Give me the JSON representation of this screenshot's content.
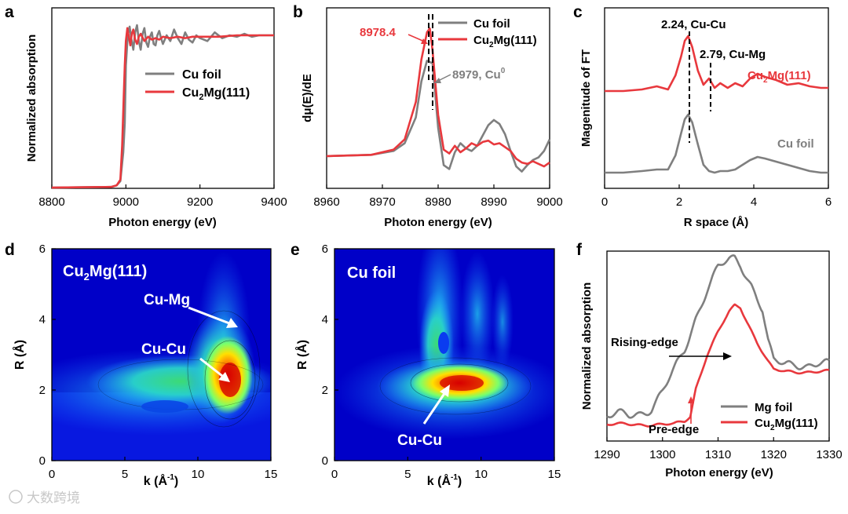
{
  "colors": {
    "cu": "#7f7f7f",
    "alloy": "#e8383d",
    "ann": "#000000",
    "white": "#ffffff"
  },
  "watermark": "大数跨境",
  "chart_data": [
    {
      "panel": "a",
      "type": "line",
      "xlabel": "Photon energy (eV)",
      "ylabel": "Normalized absorption",
      "xlim": [
        8800,
        9400
      ],
      "ylim": [
        0,
        1.25
      ],
      "xticks": [
        "8800",
        "9000",
        "9200",
        "9400"
      ],
      "legend": [
        "Cu foil",
        "Cu2Mg(111)"
      ],
      "series": [
        {
          "name": "Cu foil",
          "color": "#7f7f7f",
          "x": [
            8800,
            8960,
            8975,
            8985,
            8993,
            8997,
            9000,
            9005,
            9010,
            9015,
            9020,
            9025,
            9030,
            9035,
            9040,
            9045,
            9050,
            9055,
            9060,
            9065,
            9070,
            9075,
            9080,
            9085,
            9090,
            9095,
            9100,
            9110,
            9120,
            9130,
            9140,
            9150,
            9160,
            9170,
            9180,
            9190,
            9200,
            9220,
            9240,
            9260,
            9280,
            9300,
            9320,
            9340,
            9360,
            9380,
            9400
          ],
          "y": [
            0.005,
            0.01,
            0.02,
            0.05,
            0.25,
            0.45,
            0.85,
            1.06,
            1.12,
            1.03,
            0.96,
            1.08,
            1.13,
            1.02,
            0.96,
            1.07,
            1.11,
            1.01,
            0.98,
            1.05,
            1.08,
            1.0,
            0.99,
            1.06,
            1.09,
            1.04,
            1.0,
            1.06,
            1.02,
            1.1,
            1.04,
            1.0,
            1.08,
            1.03,
            1.01,
            1.06,
            1.04,
            1.02,
            1.08,
            1.04,
            1.06,
            1.05,
            1.07,
            1.05,
            1.06,
            1.06,
            1.06
          ]
        },
        {
          "name": "Cu2Mg(111)",
          "color": "#e8383d",
          "x": [
            8800,
            8960,
            8975,
            8985,
            8990,
            8994,
            8997,
            9000,
            9004,
            9008,
            9012,
            9016,
            9020,
            9025,
            9030,
            9035,
            9040,
            9050,
            9060,
            9070,
            9080,
            9090,
            9100,
            9120,
            9140,
            9160,
            9180,
            9200,
            9250,
            9300,
            9350,
            9400
          ],
          "y": [
            0.005,
            0.01,
            0.02,
            0.06,
            0.3,
            0.62,
            0.85,
            1.02,
            1.11,
            1.05,
            0.99,
            1.07,
            1.1,
            1.03,
            1.0,
            1.05,
            1.07,
            1.02,
            1.05,
            1.03,
            1.04,
            1.03,
            1.05,
            1.04,
            1.05,
            1.04,
            1.05,
            1.05,
            1.05,
            1.06,
            1.06,
            1.06
          ]
        }
      ]
    },
    {
      "panel": "b",
      "type": "line",
      "xlabel": "Photon energy (eV)",
      "ylabel": "dμ(E)/dE",
      "xlim": [
        8960,
        9000
      ],
      "ylim": [
        -0.25,
        1.15
      ],
      "xticks": [
        "8960",
        "8970",
        "8980",
        "8990",
        "9000"
      ],
      "legend": [
        "Cu foil",
        "Cu2Mg(111)"
      ],
      "annotations": {
        "alloy_peak": "8978.4",
        "cu_peak": "8979, Cu",
        "cu_peak_sup": "0"
      },
      "series": [
        {
          "name": "Cu foil",
          "color": "#7f7f7f",
          "x": [
            8960,
            8968,
            8972,
            8974,
            8976,
            8977,
            8978,
            8979,
            8980,
            8981,
            8982,
            8983,
            8984,
            8985,
            8986,
            8987,
            8988,
            8989,
            8990,
            8991,
            8992,
            8993,
            8994,
            8995,
            8996,
            8997,
            8998,
            8999,
            9000
          ],
          "y": [
            0.0,
            0.01,
            0.04,
            0.1,
            0.3,
            0.58,
            0.74,
            0.72,
            0.22,
            -0.07,
            -0.1,
            0.03,
            0.1,
            0.06,
            0.04,
            0.08,
            0.16,
            0.24,
            0.28,
            0.25,
            0.17,
            0.04,
            -0.08,
            -0.12,
            -0.07,
            -0.03,
            -0.01,
            0.04,
            0.13
          ]
        },
        {
          "name": "Cu2Mg(111)",
          "color": "#e8383d",
          "x": [
            8960,
            8968,
            8972,
            8974,
            8976,
            8977,
            8978,
            8978.5,
            8979,
            8980,
            8981,
            8982,
            8983,
            8984,
            8985,
            8986,
            8987,
            8988,
            8989,
            8990,
            8991,
            8992,
            8993,
            8994,
            8995,
            8996,
            8997,
            8998,
            8999,
            9000
          ],
          "y": [
            0.0,
            0.01,
            0.05,
            0.13,
            0.42,
            0.75,
            0.96,
            0.99,
            0.82,
            0.32,
            0.05,
            0.02,
            0.08,
            0.03,
            0.06,
            0.1,
            0.08,
            0.11,
            0.12,
            0.09,
            0.1,
            0.07,
            0.04,
            -0.02,
            -0.05,
            -0.06,
            -0.04,
            -0.06,
            -0.08,
            -0.05
          ]
        }
      ]
    },
    {
      "panel": "c",
      "type": "line",
      "xlabel": "R space (Å)",
      "ylabel": "Magenitude of FT",
      "xlim": [
        0,
        6
      ],
      "ylim": [
        0,
        1.15
      ],
      "xticks": [
        "0",
        "2",
        "4",
        "6"
      ],
      "annotations": {
        "peak1": "2.24, Cu-Cu",
        "peak2": "2.79, Cu-Mg",
        "peak1_r": 2.24,
        "peak2_r": 2.79
      },
      "curve_labels": [
        "Cu2Mg(111)",
        "Cu foil"
      ],
      "series": [
        {
          "name": "Cu2Mg(111)",
          "color": "#e8383d",
          "x": [
            0,
            0.5,
            1.0,
            1.4,
            1.7,
            1.9,
            2.05,
            2.15,
            2.24,
            2.35,
            2.5,
            2.65,
            2.8,
            2.95,
            3.1,
            3.3,
            3.5,
            3.7,
            3.9,
            4.1,
            4.3,
            4.6,
            4.9,
            5.2,
            5.5,
            5.8,
            6.0
          ],
          "y": [
            0.62,
            0.62,
            0.63,
            0.65,
            0.63,
            0.72,
            0.84,
            0.94,
            0.97,
            0.9,
            0.75,
            0.66,
            0.7,
            0.64,
            0.67,
            0.64,
            0.67,
            0.65,
            0.7,
            0.73,
            0.71,
            0.69,
            0.66,
            0.67,
            0.65,
            0.64,
            0.64
          ]
        },
        {
          "name": "Cu foil",
          "color": "#7f7f7f",
          "x": [
            0,
            0.5,
            1.0,
            1.4,
            1.7,
            1.9,
            2.05,
            2.15,
            2.24,
            2.35,
            2.5,
            2.65,
            2.8,
            2.95,
            3.1,
            3.3,
            3.5,
            3.7,
            3.9,
            4.1,
            4.3,
            4.6,
            4.9,
            5.2,
            5.5,
            5.8,
            6.0
          ],
          "y": [
            0.1,
            0.1,
            0.11,
            0.12,
            0.12,
            0.21,
            0.35,
            0.44,
            0.47,
            0.42,
            0.28,
            0.15,
            0.11,
            0.1,
            0.11,
            0.11,
            0.12,
            0.15,
            0.18,
            0.2,
            0.19,
            0.17,
            0.15,
            0.13,
            0.11,
            0.1,
            0.1
          ]
        }
      ]
    },
    {
      "panel": "d",
      "type": "heatmap",
      "xlabel": "k (Å",
      "xlabel_sup": "-1",
      "xlabel_close": ")",
      "ylabel": "R (Å)",
      "xlim": [
        0,
        15
      ],
      "ylim": [
        0,
        6
      ],
      "xticks": [
        "0",
        "5",
        "10",
        "15"
      ],
      "yticks": [
        "0",
        "2",
        "4",
        "6"
      ],
      "title": "Cu2Mg(111)",
      "labels": [
        "Cu-Mg",
        "Cu-Cu"
      ]
    },
    {
      "panel": "e",
      "type": "heatmap",
      "xlabel": "k (Å",
      "xlabel_sup": "-1",
      "xlabel_close": ")",
      "ylabel": "R (Å)",
      "xlim": [
        0,
        15
      ],
      "ylim": [
        0,
        6
      ],
      "xticks": [
        "0",
        "5",
        "10",
        "15"
      ],
      "yticks": [
        "0",
        "2",
        "4",
        "6"
      ],
      "title": "Cu foil",
      "labels": [
        "Cu-Cu"
      ]
    },
    {
      "panel": "f",
      "type": "line",
      "xlabel": "Photon energy (eV)",
      "ylabel": "Normalized absorption",
      "xlim": [
        1290,
        1330
      ],
      "ylim": [
        -0.1,
        1.05
      ],
      "xticks": [
        "1290",
        "1300",
        "1310",
        "1320",
        "1330"
      ],
      "legend": [
        "Mg foil",
        "Cu2Mg(111)"
      ],
      "annotations": {
        "rising": "Rising-edge",
        "pre": "Pre-edge"
      },
      "series": [
        {
          "name": "Mg foil",
          "color": "#7f7f7f",
          "x": [
            1290,
            1292,
            1294,
            1296,
            1298,
            1300,
            1302,
            1304,
            1306,
            1308,
            1310,
            1312,
            1313,
            1314,
            1316,
            1318,
            1319,
            1320,
            1322,
            1324,
            1326,
            1328,
            1330
          ],
          "y": [
            0.05,
            0.06,
            0.05,
            0.07,
            0.1,
            0.2,
            0.32,
            0.45,
            0.65,
            0.82,
            0.95,
            0.99,
            1.0,
            0.97,
            0.85,
            0.7,
            0.5,
            0.38,
            0.36,
            0.37,
            0.36,
            0.37,
            0.36
          ]
        },
        {
          "name": "Cu2Mg(111)",
          "color": "#e8383d",
          "x": [
            1290,
            1295,
            1300,
            1302,
            1304,
            1305,
            1306,
            1308,
            1310,
            1312,
            1313,
            1314,
            1315,
            1317,
            1319,
            1320,
            1322,
            1325,
            1330
          ],
          "y": [
            0.0,
            0.0,
            0.0,
            0.0,
            0.02,
            0.05,
            0.22,
            0.42,
            0.56,
            0.68,
            0.72,
            0.71,
            0.64,
            0.5,
            0.38,
            0.33,
            0.32,
            0.32,
            0.32
          ]
        }
      ]
    }
  ]
}
